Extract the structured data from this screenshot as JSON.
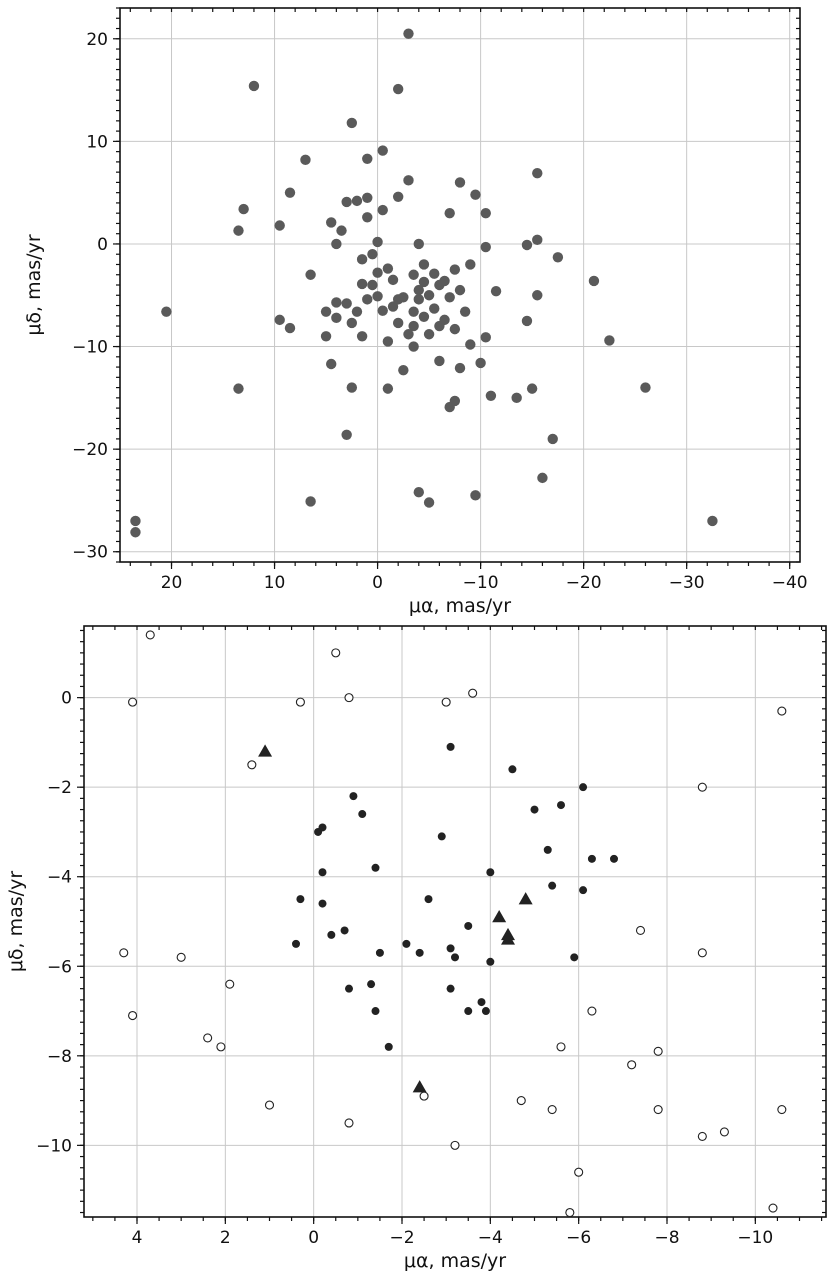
{
  "chart_data": [
    {
      "type": "scatter",
      "xlabel": "μα, mas/yr",
      "ylabel": "μδ, mas/yr",
      "xlim": [
        25,
        -41
      ],
      "ylim": [
        -31,
        23
      ],
      "x_inverted": true,
      "grid": true,
      "x_ticks": [
        20,
        10,
        0,
        -10,
        -20,
        -30,
        -40
      ],
      "x_tick_labels": [
        "20",
        "10",
        "0",
        "−10",
        "−20",
        "−30",
        "−40"
      ],
      "y_ticks": [
        20,
        10,
        0,
        -10,
        -20,
        -30
      ],
      "y_tick_labels": [
        "20",
        "10",
        "0",
        "−10",
        "−20",
        "−30"
      ],
      "marker_color": "#5a5a5a",
      "series": [
        {
          "marker": "filled-circle",
          "points": [
            [
              23.5,
              -27.0
            ],
            [
              23.5,
              -28.1
            ],
            [
              20.5,
              -6.6
            ],
            [
              13.5,
              -14.1
            ],
            [
              13.5,
              1.3
            ],
            [
              13.0,
              3.4
            ],
            [
              12.0,
              15.4
            ],
            [
              9.5,
              1.8
            ],
            [
              9.5,
              -7.4
            ],
            [
              8.5,
              5.0
            ],
            [
              8.5,
              -8.2
            ],
            [
              7.0,
              8.2
            ],
            [
              6.5,
              -3.0
            ],
            [
              6.5,
              -25.1
            ],
            [
              5.0,
              -6.6
            ],
            [
              5.0,
              -9.0
            ],
            [
              4.5,
              2.1
            ],
            [
              4.5,
              -11.7
            ],
            [
              4.0,
              -5.7
            ],
            [
              4.0,
              0.0
            ],
            [
              4.0,
              -7.2
            ],
            [
              3.5,
              1.3
            ],
            [
              3.0,
              4.1
            ],
            [
              3.0,
              -5.8
            ],
            [
              3.0,
              -18.6
            ],
            [
              2.5,
              -7.7
            ],
            [
              2.5,
              11.8
            ],
            [
              2.5,
              -14.0
            ],
            [
              2.0,
              -6.6
            ],
            [
              2.0,
              4.2
            ],
            [
              1.5,
              -1.5
            ],
            [
              1.5,
              -3.9
            ],
            [
              1.5,
              -9.0
            ],
            [
              1.0,
              4.5
            ],
            [
              1.0,
              2.6
            ],
            [
              1.0,
              -5.4
            ],
            [
              1.0,
              8.3
            ],
            [
              0.5,
              -1.0
            ],
            [
              0.5,
              -4.0
            ],
            [
              0.0,
              0.2
            ],
            [
              0.0,
              -2.8
            ],
            [
              0.0,
              -5.1
            ],
            [
              -0.5,
              3.3
            ],
            [
              -0.5,
              9.1
            ],
            [
              -0.5,
              -6.5
            ],
            [
              -1.0,
              -2.4
            ],
            [
              -1.0,
              -9.5
            ],
            [
              -1.0,
              -14.1
            ],
            [
              -1.5,
              -3.5
            ],
            [
              -1.5,
              -6.1
            ],
            [
              -2.0,
              -5.4
            ],
            [
              -2.0,
              -7.7
            ],
            [
              -2.0,
              15.1
            ],
            [
              -2.0,
              4.6
            ],
            [
              -2.5,
              -5.2
            ],
            [
              -2.5,
              -12.3
            ],
            [
              -3.0,
              6.2
            ],
            [
              -3.0,
              -8.8
            ],
            [
              -3.0,
              20.5
            ],
            [
              -3.5,
              -3.0
            ],
            [
              -3.5,
              -6.6
            ],
            [
              -3.5,
              -8.0
            ],
            [
              -3.5,
              -10.0
            ],
            [
              -4.0,
              -4.5
            ],
            [
              -4.0,
              0.0
            ],
            [
              -4.0,
              -5.4
            ],
            [
              -4.0,
              -24.2
            ],
            [
              -4.5,
              -2.0
            ],
            [
              -4.5,
              -3.7
            ],
            [
              -4.5,
              -7.1
            ],
            [
              -5.0,
              -5.0
            ],
            [
              -5.0,
              -8.8
            ],
            [
              -5.0,
              -25.2
            ],
            [
              -5.5,
              -2.9
            ],
            [
              -5.5,
              -6.3
            ],
            [
              -6.0,
              -4.0
            ],
            [
              -6.0,
              -8.0
            ],
            [
              -6.0,
              -11.4
            ],
            [
              -6.5,
              -3.6
            ],
            [
              -6.5,
              -7.4
            ],
            [
              -7.0,
              3.0
            ],
            [
              -7.0,
              -5.2
            ],
            [
              -7.0,
              -15.9
            ],
            [
              -7.5,
              -2.5
            ],
            [
              -7.5,
              -8.3
            ],
            [
              -7.5,
              -15.3
            ],
            [
              -8.0,
              6.0
            ],
            [
              -8.0,
              -4.5
            ],
            [
              -8.0,
              -12.1
            ],
            [
              -8.5,
              -6.6
            ],
            [
              -9.0,
              -2.0
            ],
            [
              -9.0,
              -9.8
            ],
            [
              -9.5,
              4.8
            ],
            [
              -9.5,
              -24.5
            ],
            [
              -10.0,
              -11.6
            ],
            [
              -10.5,
              3.0
            ],
            [
              -10.5,
              -0.3
            ],
            [
              -10.5,
              -9.1
            ],
            [
              -11.0,
              -14.8
            ],
            [
              -11.5,
              -4.6
            ],
            [
              -13.5,
              -15.0
            ],
            [
              -14.5,
              -0.1
            ],
            [
              -14.5,
              -7.5
            ],
            [
              -15.0,
              -14.1
            ],
            [
              -15.5,
              6.9
            ],
            [
              -15.5,
              -5.0
            ],
            [
              -15.5,
              0.4
            ],
            [
              -16.0,
              -22.8
            ],
            [
              -17.0,
              -19.0
            ],
            [
              -17.5,
              -1.3
            ],
            [
              -21.0,
              -3.6
            ],
            [
              -22.5,
              -9.4
            ],
            [
              -26.0,
              -14.0
            ],
            [
              -32.5,
              -27.0
            ]
          ]
        }
      ]
    },
    {
      "type": "scatter",
      "xlabel": "μα, mas/yr",
      "ylabel": "μδ, mas/yr",
      "xlim": [
        5.2,
        -11.6
      ],
      "ylim": [
        -11.6,
        1.6
      ],
      "x_inverted": true,
      "grid": true,
      "x_ticks": [
        4,
        2,
        0,
        -2,
        -4,
        -6,
        -8,
        -10
      ],
      "x_tick_labels": [
        "4",
        "2",
        "0",
        "−2",
        "−4",
        "−6",
        "−8",
        "−10"
      ],
      "y_ticks": [
        0,
        -2,
        -4,
        -6,
        -8,
        -10
      ],
      "y_tick_labels": [
        "0",
        "−2",
        "−4",
        "−6",
        "−8",
        "−10"
      ],
      "marker_color": "#222222",
      "series": [
        {
          "marker": "open-circle",
          "points": [
            [
              3.7,
              1.4
            ],
            [
              4.1,
              -0.1
            ],
            [
              -0.5,
              1.0
            ],
            [
              0.3,
              -0.1
            ],
            [
              -0.8,
              0.0
            ],
            [
              -3.0,
              -0.1
            ],
            [
              -3.6,
              0.1
            ],
            [
              -10.6,
              -0.3
            ],
            [
              1.4,
              -1.5
            ],
            [
              -8.8,
              -2.0
            ],
            [
              4.3,
              -5.7
            ],
            [
              3.0,
              -5.8
            ],
            [
              1.9,
              -6.4
            ],
            [
              4.1,
              -7.1
            ],
            [
              2.4,
              -7.6
            ],
            [
              2.1,
              -7.8
            ],
            [
              1.0,
              -9.1
            ],
            [
              -0.8,
              -9.5
            ],
            [
              -2.5,
              -8.9
            ],
            [
              -3.2,
              -10.0
            ],
            [
              -4.7,
              -9.0
            ],
            [
              -5.4,
              -9.2
            ],
            [
              -5.6,
              -7.8
            ],
            [
              -6.3,
              -7.0
            ],
            [
              -7.4,
              -5.2
            ],
            [
              -8.8,
              -5.7
            ],
            [
              -7.2,
              -8.2
            ],
            [
              -7.8,
              -7.9
            ],
            [
              -7.8,
              -9.2
            ],
            [
              -8.8,
              -9.8
            ],
            [
              -9.3,
              -9.7
            ],
            [
              -10.6,
              -9.2
            ],
            [
              -6.0,
              -10.6
            ],
            [
              -5.8,
              -11.5
            ],
            [
              -10.4,
              -11.4
            ]
          ]
        },
        {
          "marker": "filled-circle",
          "points": [
            [
              -3.1,
              -1.1
            ],
            [
              -4.5,
              -1.6
            ],
            [
              -6.1,
              -2.0
            ],
            [
              -0.9,
              -2.2
            ],
            [
              -5.0,
              -2.5
            ],
            [
              -5.6,
              -2.4
            ],
            [
              -1.1,
              -2.6
            ],
            [
              -0.2,
              -2.9
            ],
            [
              -0.1,
              -3.0
            ],
            [
              -2.9,
              -3.1
            ],
            [
              -5.3,
              -3.4
            ],
            [
              -6.3,
              -3.6
            ],
            [
              -6.8,
              -3.6
            ],
            [
              -1.4,
              -3.8
            ],
            [
              -0.2,
              -3.9
            ],
            [
              -4.0,
              -3.9
            ],
            [
              -5.4,
              -4.2
            ],
            [
              -6.1,
              -4.3
            ],
            [
              0.3,
              -4.5
            ],
            [
              -0.2,
              -4.6
            ],
            [
              -2.6,
              -4.5
            ],
            [
              -3.5,
              -5.1
            ],
            [
              -0.7,
              -5.2
            ],
            [
              -0.4,
              -5.3
            ],
            [
              0.4,
              -5.5
            ],
            [
              -2.1,
              -5.5
            ],
            [
              -1.5,
              -5.7
            ],
            [
              -2.4,
              -5.7
            ],
            [
              -3.1,
              -5.6
            ],
            [
              -3.2,
              -5.8
            ],
            [
              -4.0,
              -5.9
            ],
            [
              -5.9,
              -5.8
            ],
            [
              -0.8,
              -6.5
            ],
            [
              -1.3,
              -6.4
            ],
            [
              -3.1,
              -6.5
            ],
            [
              -1.4,
              -7.0
            ],
            [
              -3.5,
              -7.0
            ],
            [
              -3.8,
              -6.8
            ],
            [
              -3.9,
              -7.0
            ],
            [
              -1.7,
              -7.8
            ]
          ]
        },
        {
          "marker": "filled-triangle",
          "points": [
            [
              1.1,
              -1.2
            ],
            [
              -4.8,
              -4.5
            ],
            [
              -4.2,
              -4.9
            ],
            [
              -4.4,
              -5.3
            ],
            [
              -4.4,
              -5.4
            ],
            [
              -2.4,
              -8.7
            ]
          ]
        }
      ]
    }
  ]
}
